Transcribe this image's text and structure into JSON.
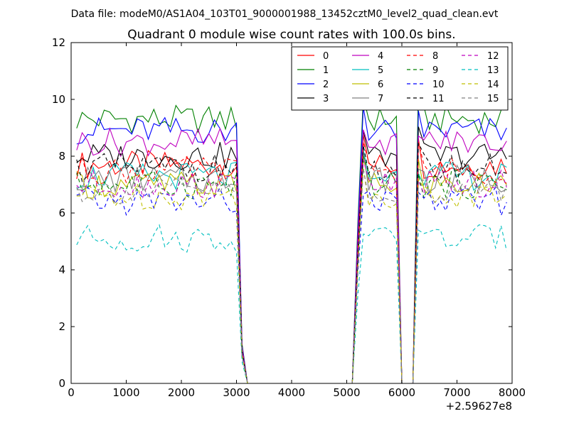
{
  "suptitle": "Data file: modeM0/AS1A04_103T01_9000001988_13452cztM0_level2_quad_clean.evt",
  "chart_data": {
    "type": "line",
    "title": "Quadrant 0 module wise count rates with 100.0s bins.",
    "xlabel": "",
    "ylabel": "",
    "x_offset_label": "+2.59627e8",
    "xlim": [
      0,
      8000
    ],
    "ylim": [
      0,
      12
    ],
    "xticks": [
      "0",
      "1000",
      "2000",
      "3000",
      "4000",
      "5000",
      "6000",
      "7000",
      "8000"
    ],
    "yticks": [
      "0",
      "2",
      "4",
      "6",
      "8",
      "10",
      "12"
    ],
    "grid": false,
    "legend_position": "top-right",
    "legend_columns": 4,
    "series": [
      {
        "name": "0",
        "color": "#ff0000",
        "dash": "solid",
        "base": 7.7
      },
      {
        "name": "1",
        "color": "#008000",
        "dash": "solid",
        "base": 9.3
      },
      {
        "name": "2",
        "color": "#0000ff",
        "dash": "solid",
        "base": 8.9
      },
      {
        "name": "3",
        "color": "#000000",
        "dash": "solid",
        "base": 8.0
      },
      {
        "name": "4",
        "color": "#bf00bf",
        "dash": "solid",
        "base": 8.5
      },
      {
        "name": "5",
        "color": "#00bfbf",
        "dash": "solid",
        "base": 7.3
      },
      {
        "name": "6",
        "color": "#bfbf00",
        "dash": "solid",
        "base": 7.0
      },
      {
        "name": "7",
        "color": "#808080",
        "dash": "solid",
        "base": 7.2
      },
      {
        "name": "8",
        "color": "#ff0000",
        "dash": "dashed",
        "base": 7.5
      },
      {
        "name": "9",
        "color": "#008000",
        "dash": "dashed",
        "base": 7.0
      },
      {
        "name": "10",
        "color": "#0000ff",
        "dash": "dashed",
        "base": 6.4
      },
      {
        "name": "11",
        "color": "#000000",
        "dash": "dashed",
        "base": 7.6
      },
      {
        "name": "12",
        "color": "#bf00bf",
        "dash": "dashed",
        "base": 7.0
      },
      {
        "name": "13",
        "color": "#00bfbf",
        "dash": "dashed",
        "base": 5.1
      },
      {
        "name": "14",
        "color": "#bfbf00",
        "dash": "dashed",
        "base": 6.6
      },
      {
        "name": "15",
        "color": "#808080",
        "dash": "dashed",
        "base": 6.8
      }
    ],
    "segments": [
      {
        "x_start": 100,
        "x_end": 3000,
        "level": "high"
      },
      {
        "x_start": 3000,
        "x_end": 3100,
        "level": "drop"
      },
      {
        "x_start": 3200,
        "x_end": 5000,
        "level": "zero"
      },
      {
        "x_start": 5100,
        "x_end": 5300,
        "level": "rise"
      },
      {
        "x_start": 5300,
        "x_end": 5900,
        "level": "high"
      },
      {
        "x_start": 6000,
        "x_end": 6200,
        "level": "zero"
      },
      {
        "x_start": 6300,
        "x_end": 7900,
        "level": "high"
      }
    ]
  }
}
